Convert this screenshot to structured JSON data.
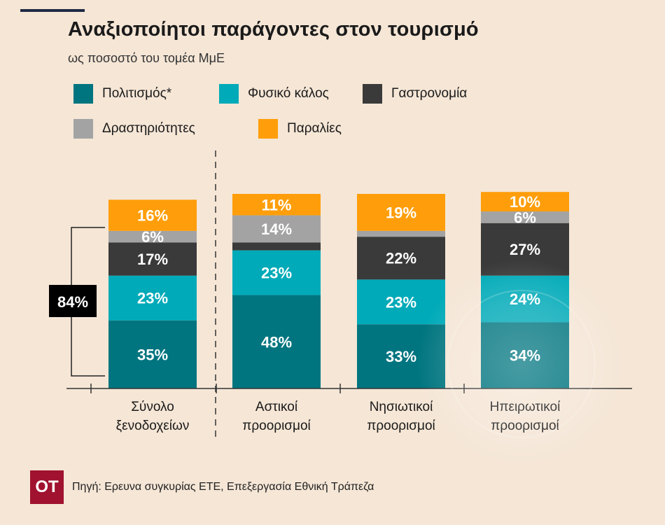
{
  "header": {
    "title": "Αναξιοποίητοι παράγοντες στον τουρισμό",
    "subtitle": "ως ποσοστό του τομέα ΜμΕ"
  },
  "legend": [
    {
      "label": "Πολιτισμός*",
      "color": "#00757f"
    },
    {
      "label": "Φυσικό κάλος",
      "color": "#00aab8"
    },
    {
      "label": "Γαστρονομία",
      "color": "#3a3a3a"
    },
    {
      "label": "Δραστηριότητες",
      "color": "#a3a3a3"
    },
    {
      "label": "Παραλίες",
      "color": "#ff9e0a"
    }
  ],
  "bracket_label": "84%",
  "chart_data": {
    "type": "bar",
    "stacked": true,
    "categories": [
      [
        "Σύνολο",
        "ξενοδοχείων"
      ],
      [
        "Αστικοί",
        "προορισμοί"
      ],
      [
        "Νησιωτικοί",
        "προορισμοί"
      ],
      [
        "Ηπειρωτικοί",
        "προορισμοί"
      ]
    ],
    "series": [
      {
        "name": "Πολιτισμός*",
        "color": "#00757f",
        "values": [
          35,
          48,
          33,
          34
        ],
        "labels": [
          "35%",
          "48%",
          "33%",
          "34%"
        ]
      },
      {
        "name": "Φυσικό κάλος",
        "color": "#00aab8",
        "values": [
          23,
          23,
          23,
          24
        ],
        "labels": [
          "23%",
          "23%",
          "23%",
          "24%"
        ]
      },
      {
        "name": "Γαστρονομία",
        "color": "#3a3a3a",
        "values": [
          17,
          4,
          22,
          27
        ],
        "labels": [
          "17%",
          "",
          "22%",
          "27%"
        ]
      },
      {
        "name": "Δραστηριότητες",
        "color": "#a3a3a3",
        "values": [
          6,
          14,
          3,
          6
        ],
        "labels": [
          "6%",
          "14%",
          "",
          "6%"
        ]
      },
      {
        "name": "Παραλίες",
        "color": "#ff9e0a",
        "values": [
          16,
          11,
          19,
          10
        ],
        "labels": [
          "16%",
          "11%",
          "19%",
          "10%"
        ]
      }
    ],
    "ylim": [
      0,
      100
    ],
    "grid": false
  },
  "source": {
    "logo": "ΟΤ",
    "text": "Πηγή: Ερευνα συγκυρίας ΕΤΕ, Επεξεργασία Εθνική Τράπεζα"
  }
}
